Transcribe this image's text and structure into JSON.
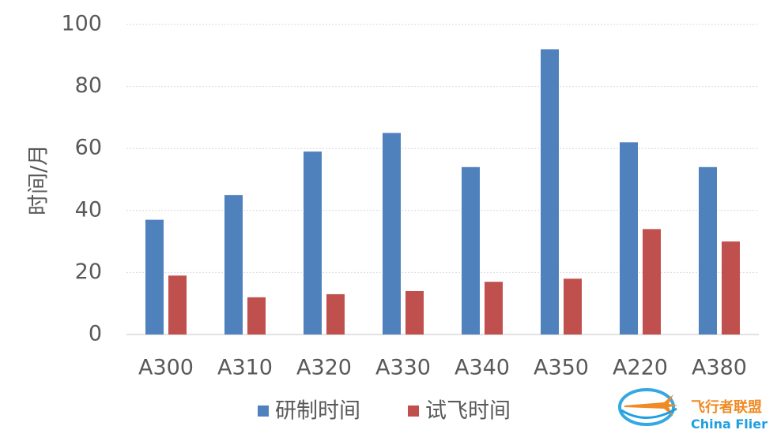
{
  "chart_data": {
    "type": "bar",
    "title": "",
    "xlabel": "",
    "ylabel": "时间/月",
    "categories": [
      "A300",
      "A310",
      "A320",
      "A330",
      "A340",
      "A350",
      "A220",
      "A380"
    ],
    "series": [
      {
        "name": "研制时间",
        "color": "#4F81BD",
        "values": [
          37,
          45,
          59,
          65,
          54,
          92,
          62,
          54
        ]
      },
      {
        "name": "试飞时间",
        "color": "#C0504D",
        "values": [
          19,
          12,
          13,
          14,
          17,
          18,
          34,
          30
        ]
      }
    ],
    "ylim": [
      0,
      100
    ],
    "yticks": [
      0,
      20,
      40,
      60,
      80,
      100
    ],
    "grid": true,
    "legend_position": "bottom"
  },
  "watermark": {
    "text_cn": "飞行者联盟",
    "text_en": "China Flier",
    "icon": "airplane-ring-logo",
    "color": "#1E9FE0"
  }
}
